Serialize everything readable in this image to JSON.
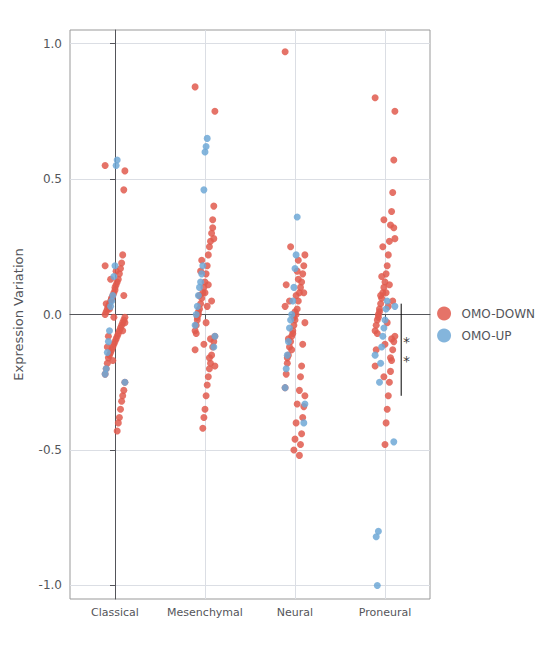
{
  "chart_data": {
    "type": "scatter",
    "ylabel": "Expression Variation",
    "categories": [
      "Classical",
      "Mesenchymal",
      "Neural",
      "Proneural"
    ],
    "ylim": [
      -1.05,
      1.05
    ],
    "yticks": [
      {
        "value": -1.0,
        "label": "-1.0"
      },
      -0.5,
      {
        "value": 0.0,
        "label": "0.0"
      },
      0.5,
      {
        "value": 1.0,
        "label": "1.0"
      }
    ],
    "grid": true,
    "legend": "right",
    "series": [
      {
        "name": "OMO-DOWN",
        "color": "#E05A4E",
        "values": [
          [
            0.55,
            0.53,
            0.46,
            0.22,
            0.19,
            0.17,
            0.15,
            0.13,
            0.12,
            0.11,
            0.1,
            0.08,
            0.07,
            0.06,
            0.05,
            0.04,
            0.03,
            0.02,
            0.01,
            0.0,
            -0.01,
            -0.02,
            -0.03,
            -0.04,
            -0.05,
            -0.06,
            -0.07,
            -0.08,
            -0.09,
            -0.1,
            -0.11,
            -0.12,
            -0.13,
            -0.14,
            -0.15,
            -0.16,
            -0.18,
            -0.2,
            -0.22,
            -0.25,
            -0.28,
            -0.3,
            -0.32,
            -0.35,
            -0.38,
            -0.4,
            -0.43,
            0.16,
            0.09,
            -0.01,
            -0.17,
            0.06,
            0.13,
            0.02,
            -0.08,
            -0.12,
            0.04,
            0.18,
            -0.03,
            0.07,
            -0.06
          ],
          [
            0.84,
            0.75,
            0.4,
            0.35,
            0.3,
            0.27,
            0.25,
            0.22,
            0.18,
            0.15,
            0.12,
            0.1,
            0.08,
            0.06,
            0.04,
            0.02,
            0.0,
            -0.02,
            -0.04,
            -0.06,
            -0.08,
            -0.1,
            -0.12,
            -0.15,
            -0.18,
            -0.2,
            -0.23,
            -0.26,
            -0.3,
            -0.35,
            -0.38,
            -0.42,
            0.2,
            0.16,
            0.07,
            0.01,
            -0.01,
            -0.07,
            -0.13,
            -0.19,
            0.28,
            0.32,
            0.05,
            -0.09,
            -0.16,
            0.11,
            0.03,
            -0.03,
            0.08,
            -0.11
          ],
          [
            0.97,
            0.22,
            0.18,
            0.15,
            0.12,
            0.1,
            0.08,
            0.05,
            0.02,
            0.0,
            -0.02,
            -0.04,
            -0.06,
            -0.08,
            -0.1,
            -0.12,
            -0.15,
            -0.18,
            -0.22,
            -0.27,
            -0.3,
            -0.34,
            -0.38,
            -0.44,
            -0.48,
            -0.52,
            0.2,
            0.16,
            0.07,
            0.01,
            -0.01,
            -0.07,
            -0.13,
            0.25,
            0.05,
            -0.09,
            -0.16,
            0.11,
            0.03,
            -0.03,
            0.08,
            -0.11,
            -0.19,
            -0.23,
            -0.28,
            0.13,
            -0.33,
            -0.4,
            -0.46,
            -0.5
          ],
          [
            0.8,
            0.75,
            0.57,
            0.45,
            0.38,
            0.33,
            0.27,
            0.22,
            0.18,
            0.15,
            0.12,
            0.1,
            0.08,
            0.06,
            0.04,
            0.02,
            0.0,
            -0.02,
            -0.04,
            -0.06,
            -0.08,
            -0.1,
            -0.13,
            -0.17,
            -0.21,
            -0.25,
            -0.3,
            -0.35,
            -0.4,
            -0.48,
            0.35,
            0.25,
            0.14,
            0.07,
            0.01,
            -0.01,
            -0.07,
            -0.13,
            -0.19,
            0.28,
            0.32,
            0.05,
            -0.09,
            -0.16,
            0.11,
            0.03,
            -0.03,
            0.08,
            -0.11,
            -0.23
          ]
        ]
      },
      {
        "name": "OMO-UP",
        "color": "#6FA8D6",
        "values": [
          [
            0.57,
            0.55,
            0.18,
            0.14,
            0.07,
            0.05,
            0.03,
            -0.06,
            -0.1,
            -0.14,
            -0.2,
            -0.22,
            -0.25
          ],
          [
            0.65,
            0.62,
            0.6,
            0.46,
            0.18,
            0.15,
            0.12,
            0.1,
            0.07,
            0.03,
            0.0,
            -0.04,
            -0.08,
            -0.12
          ],
          [
            0.36,
            0.22,
            0.17,
            0.1,
            0.05,
            0.0,
            -0.02,
            -0.05,
            -0.1,
            -0.15,
            -0.2,
            -0.27,
            -0.33,
            -0.4
          ],
          [
            0.05,
            0.02,
            -0.02,
            -0.05,
            -0.08,
            -0.12,
            -0.18,
            -0.25,
            -0.8,
            -1.0,
            -0.82,
            -0.15,
            0.03,
            -0.47
          ]
        ]
      }
    ],
    "annotations": [
      {
        "type": "line",
        "category": "Proneural",
        "y": [
          0.04,
          -0.3
        ]
      },
      {
        "text": "*",
        "category": "Proneural",
        "y": -0.1
      },
      {
        "text": "*",
        "category": "Proneural",
        "y": -0.17
      }
    ]
  }
}
